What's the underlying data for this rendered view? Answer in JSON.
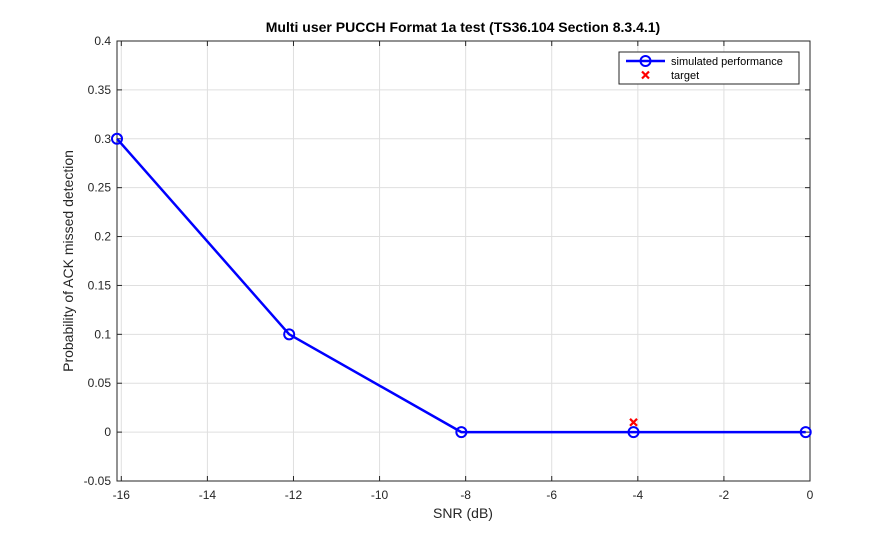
{
  "chart_data": {
    "type": "line",
    "title": "Multi user PUCCH Format 1a test (TS36.104 Section 8.3.4.1)",
    "xlabel": "SNR (dB)",
    "ylabel": "Probability of ACK missed detection",
    "xlim": [
      -16.1,
      0
    ],
    "ylim": [
      -0.05,
      0.4
    ],
    "xticks": [
      -16,
      -14,
      -12,
      -10,
      -8,
      -6,
      -4,
      -2,
      0
    ],
    "yticks": [
      -0.05,
      0,
      0.05,
      0.1,
      0.15,
      0.2,
      0.25,
      0.3,
      0.35,
      0.4
    ],
    "xtick_labels": [
      "-16",
      "-14",
      "-12",
      "-10",
      "-8",
      "-6",
      "-4",
      "-2",
      "0"
    ],
    "ytick_labels": [
      "-0.05",
      "0",
      "0.05",
      "0.1",
      "0.15",
      "0.2",
      "0.25",
      "0.3",
      "0.35",
      "0.4"
    ],
    "grid": true,
    "legend_position": "top-right",
    "series": [
      {
        "name": "simulated performance",
        "x": [
          -16.1,
          -12.1,
          -8.1,
          -4.1,
          -0.1
        ],
        "y": [
          0.3,
          0.1,
          0.0,
          0.0,
          0.0
        ],
        "color": "#0000ff",
        "marker": "circle"
      },
      {
        "name": "target",
        "x": [
          -4.1
        ],
        "y": [
          0.01
        ],
        "color": "#ff0000",
        "marker": "x"
      }
    ]
  }
}
